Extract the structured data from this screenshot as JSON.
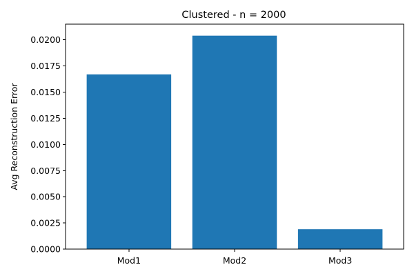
{
  "chart_data": {
    "type": "bar",
    "title": "Clustered - n = 2000",
    "xlabel": "",
    "ylabel": "Avg Reconstruction Error",
    "categories": [
      "Mod1",
      "Mod2",
      "Mod3"
    ],
    "values": [
      0.0167,
      0.0204,
      0.0019
    ],
    "ylim": [
      0,
      0.0215
    ],
    "yticks": [
      0.0,
      0.0025,
      0.005,
      0.0075,
      0.01,
      0.0125,
      0.015,
      0.0175,
      0.02
    ],
    "ytick_labels": [
      "0.0000",
      "0.0025",
      "0.0050",
      "0.0075",
      "0.0100",
      "0.0125",
      "0.0150",
      "0.0175",
      "0.0200"
    ],
    "bar_color": "#1f77b4",
    "grid": false,
    "legend": "none"
  }
}
